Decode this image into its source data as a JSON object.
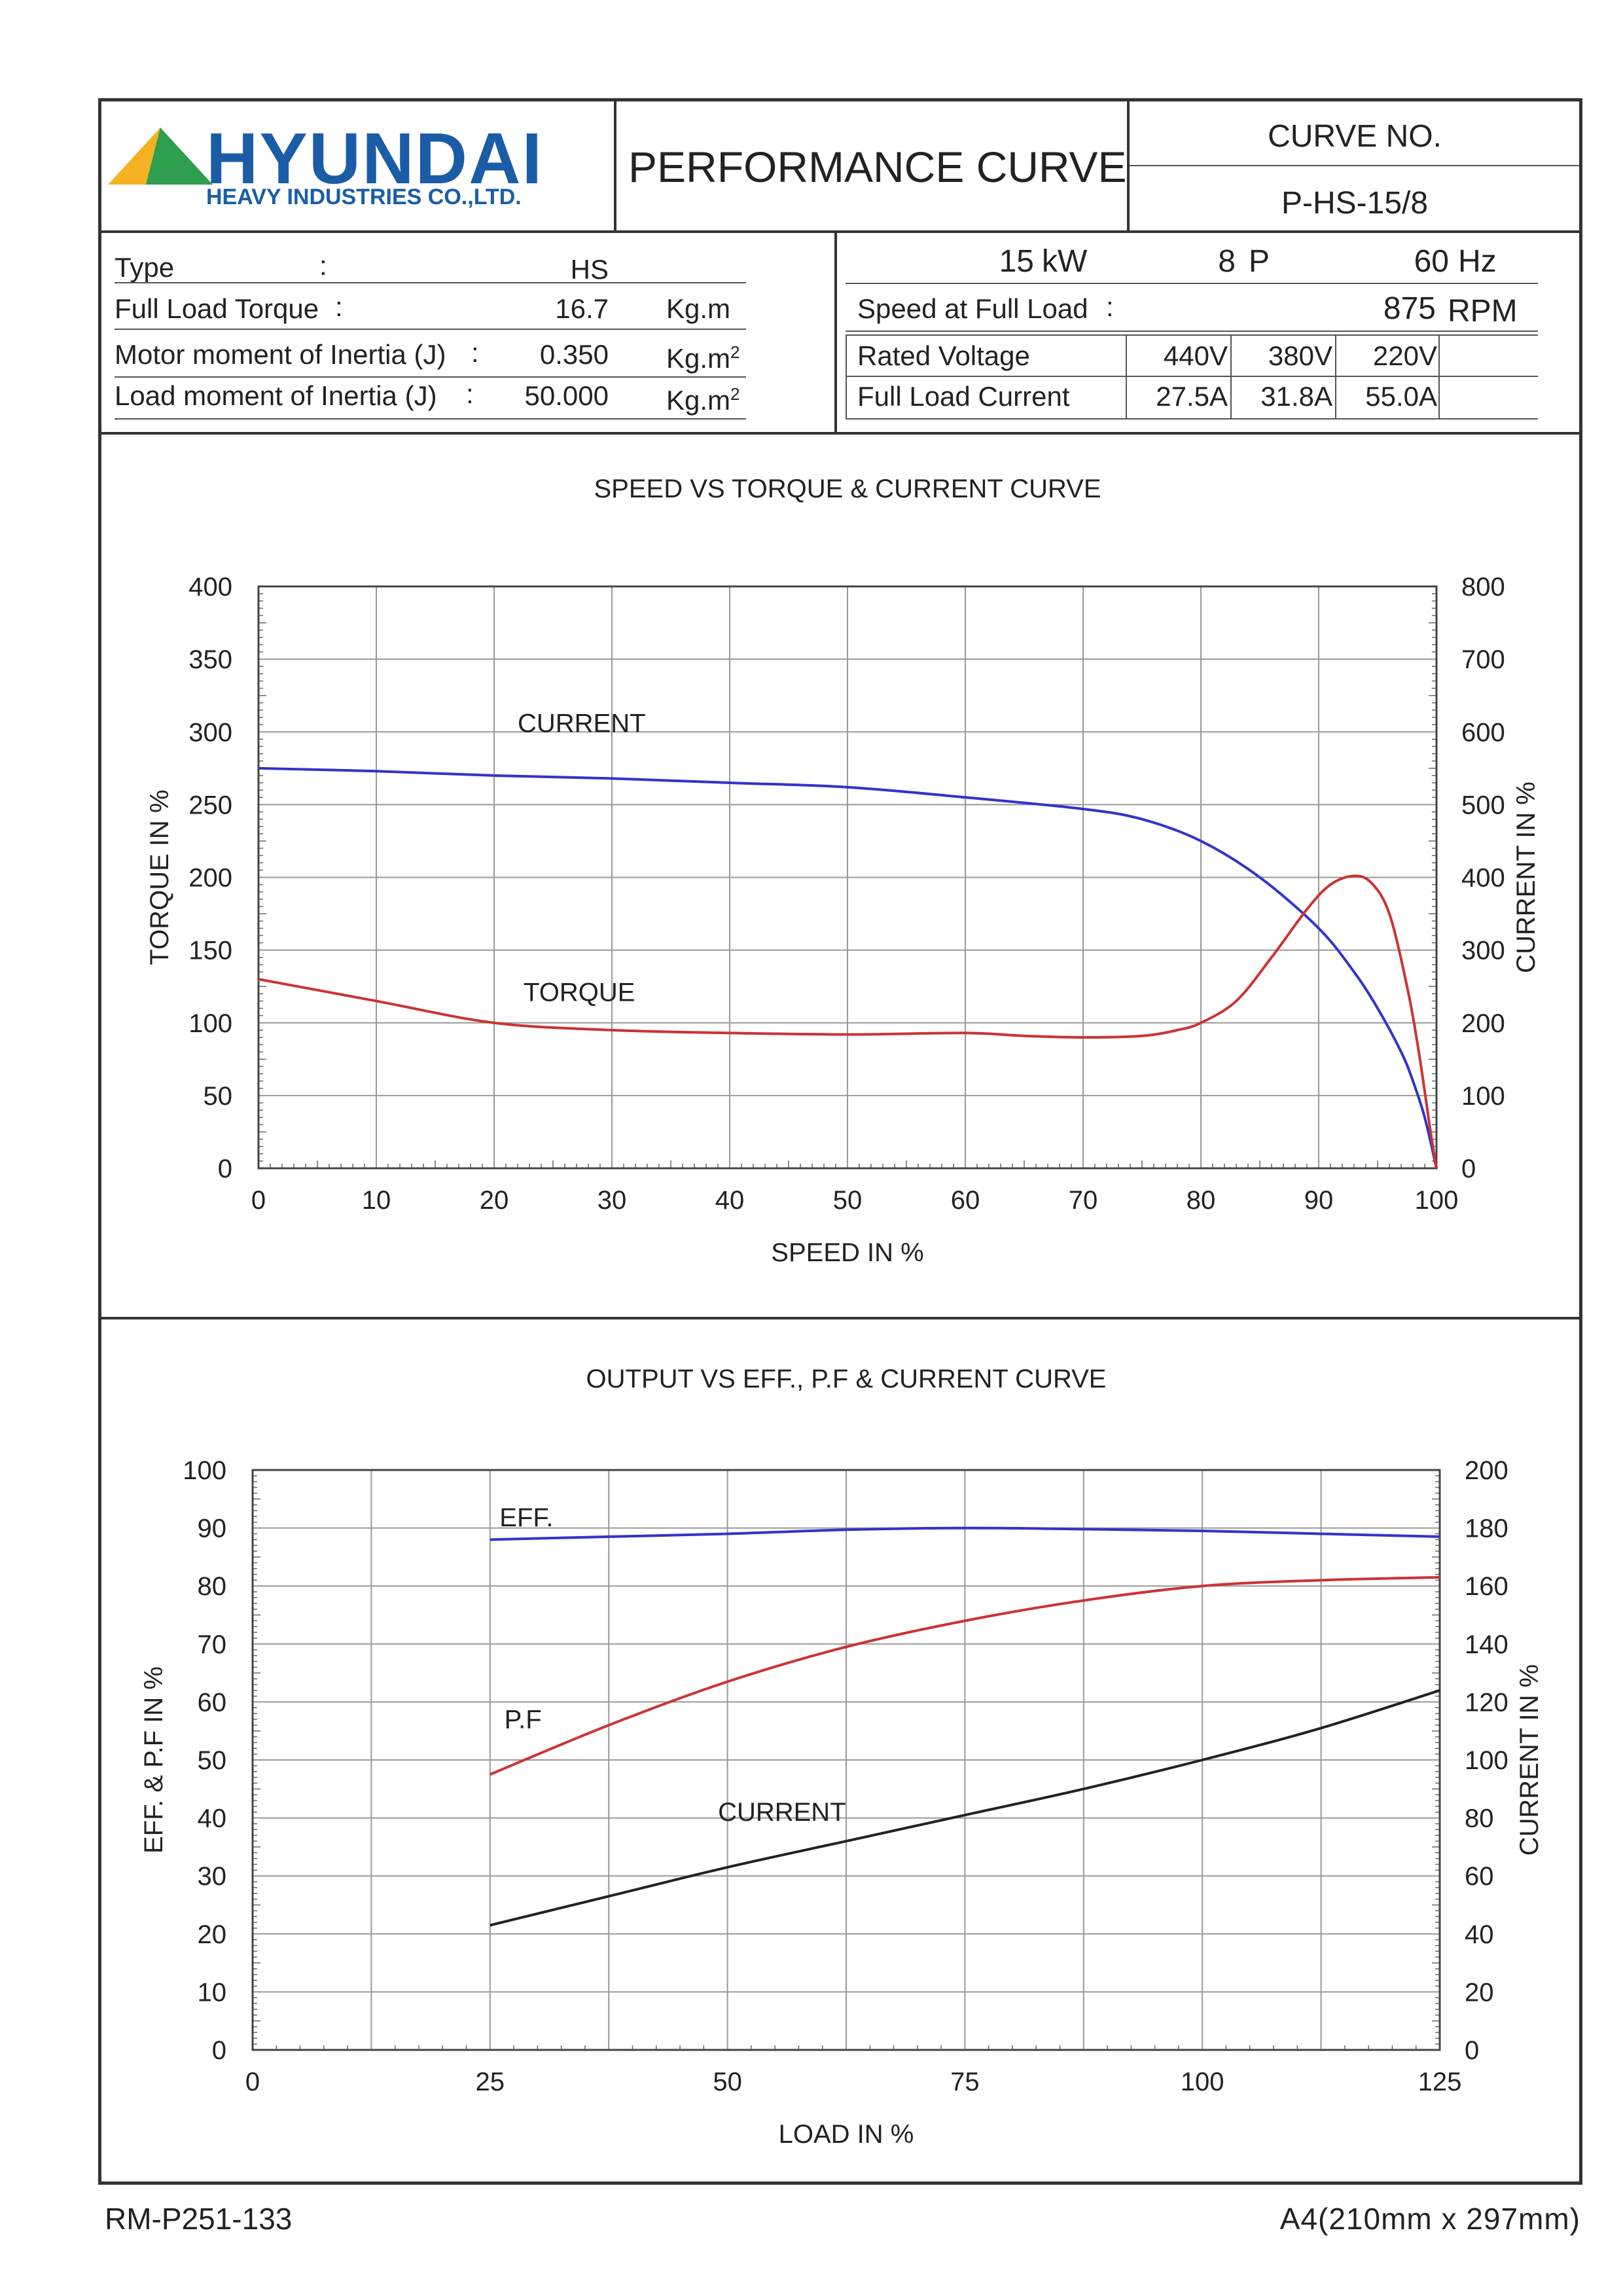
{
  "header": {
    "brand": "HYUNDAI",
    "brand_sub": "HEAVY INDUSTRIES CO.,LTD.",
    "doc_title": "PERFORMANCE CURVE",
    "curve_no_label": "CURVE NO.",
    "curve_no": "P-HS-15/8"
  },
  "spec_left": {
    "type_label": "Type",
    "type_sep": ":",
    "type_value": "HS",
    "torque_label": "Full Load Torque",
    "torque_sep": ":",
    "torque_value": "16.7",
    "torque_unit": "Kg.m",
    "motor_inertia_label": "Motor moment of Inertia (J)",
    "motor_inertia_sep": ":",
    "motor_inertia_value": "0.350",
    "motor_inertia_unit": "Kg.m",
    "load_inertia_label": "Load moment of Inertia (J)",
    "load_inertia_sep": ":",
    "load_inertia_value": "50.000",
    "load_inertia_unit": "Kg.m",
    "unit_sup": "2"
  },
  "spec_right": {
    "power_value": "15",
    "power_unit": "kW",
    "poles_value": "8",
    "poles_unit": "P",
    "freq_value": "60",
    "freq_unit": "Hz",
    "speed_label": "Speed at Full Load",
    "speed_sep": ":",
    "speed_value": "875",
    "speed_unit": "RPM",
    "voltage_label": "Rated Voltage",
    "voltages": [
      "440V",
      "380V",
      "220V"
    ],
    "current_label": "Full Load Current",
    "currents": [
      "27.5A",
      "31.8A",
      "55.0A"
    ]
  },
  "chart_data": [
    {
      "type": "line",
      "title": "SPEED VS TORQUE & CURRENT CURVE",
      "xlabel": "SPEED IN %",
      "ylabel": "TORQUE IN %",
      "y2label": "CURRENT IN %",
      "xlim": [
        0,
        100
      ],
      "ylim": [
        0,
        400
      ],
      "y2lim": [
        0,
        800
      ],
      "xticks": [
        0,
        10,
        20,
        30,
        40,
        50,
        60,
        70,
        80,
        90,
        100
      ],
      "yticks": [
        0,
        50,
        100,
        150,
        200,
        250,
        300,
        350,
        400
      ],
      "y2ticks": [
        0,
        100,
        200,
        300,
        400,
        500,
        600,
        700,
        800
      ],
      "grid": true,
      "series": [
        {
          "name": "CURRENT",
          "axis": "y2",
          "color": "#3333cc",
          "x": [
            0,
            10,
            20,
            30,
            40,
            50,
            60,
            70,
            75,
            80,
            85,
            90,
            93,
            95,
            97,
            98,
            99,
            100
          ],
          "y": [
            550,
            546,
            540,
            536,
            530,
            524,
            510,
            494,
            480,
            450,
            400,
            330,
            270,
            220,
            160,
            120,
            70,
            0
          ]
        },
        {
          "name": "TORQUE",
          "axis": "y",
          "color": "#cc3333",
          "x": [
            0,
            10,
            20,
            30,
            40,
            50,
            60,
            65,
            70,
            75,
            78,
            80,
            83,
            86,
            89,
            91,
            93,
            94.5,
            96,
            97.5,
            98.5,
            99.5,
            100
          ],
          "y": [
            130,
            115,
            100,
            95,
            93,
            92,
            93,
            91,
            90,
            91,
            95,
            100,
            115,
            145,
            178,
            195,
            201,
            196,
            175,
            125,
            80,
            25,
            0
          ]
        }
      ]
    },
    {
      "type": "line",
      "title": "OUTPUT VS EFF., P.F & CURRENT CURVE",
      "xlabel": "LOAD IN %",
      "ylabel": "EFF. & P.F IN %",
      "y2label": "CURRENT IN %",
      "xlim": [
        0,
        125
      ],
      "ylim": [
        0,
        100
      ],
      "y2lim": [
        0,
        200
      ],
      "xticks": [
        0,
        25,
        50,
        75,
        100,
        125
      ],
      "yticks": [
        0,
        10,
        20,
        30,
        40,
        50,
        60,
        70,
        80,
        90,
        100
      ],
      "y2ticks": [
        0,
        20,
        40,
        60,
        80,
        100,
        120,
        140,
        160,
        180,
        200
      ],
      "grid": true,
      "series": [
        {
          "name": "EFF.",
          "axis": "y",
          "color": "#3333cc",
          "x": [
            25,
            37.5,
            50,
            62.5,
            75,
            87.5,
            100,
            112.5,
            125
          ],
          "y": [
            88,
            88.5,
            89,
            89.7,
            90,
            89.8,
            89.5,
            89,
            88.5
          ]
        },
        {
          "name": "P.F",
          "axis": "y",
          "color": "#cc3333",
          "x": [
            25,
            37.5,
            50,
            62.5,
            75,
            87.5,
            100,
            112.5,
            125
          ],
          "y": [
            47.5,
            56,
            63.5,
            69.5,
            74,
            77.5,
            80,
            81,
            81.5
          ]
        },
        {
          "name": "CURRENT",
          "axis": "y2",
          "color": "#222222",
          "x": [
            25,
            37.5,
            50,
            62.5,
            75,
            87.5,
            100,
            112.5,
            125
          ],
          "y": [
            43,
            53,
            63,
            72,
            81,
            90,
            100,
            111,
            124
          ]
        }
      ]
    }
  ],
  "footer": {
    "doc_code": "RM-P251-133",
    "page_size": "A4(210mm x 297mm)"
  }
}
